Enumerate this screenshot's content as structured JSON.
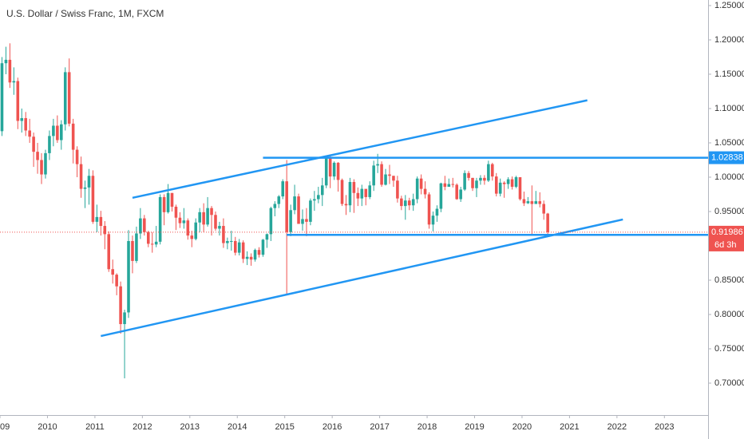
{
  "chart_data": {
    "type": "candlestick",
    "title": "U.S. Dollar / Swiss Franc, 1M, FXCM",
    "x": [
      "2009-01",
      "2009-02",
      "2009-03",
      "2009-04",
      "2009-05",
      "2009-06",
      "2009-07",
      "2009-08",
      "2009-09",
      "2009-10",
      "2009-11",
      "2009-12",
      "2010-01",
      "2010-02",
      "2010-03",
      "2010-04",
      "2010-05",
      "2010-06",
      "2010-07",
      "2010-08",
      "2010-09",
      "2010-10",
      "2010-11",
      "2010-12",
      "2011-01",
      "2011-02",
      "2011-03",
      "2011-04",
      "2011-05",
      "2011-06",
      "2011-07",
      "2011-08",
      "2011-09",
      "2011-10",
      "2011-11",
      "2011-12",
      "2012-01",
      "2012-02",
      "2012-03",
      "2012-04",
      "2012-05",
      "2012-06",
      "2012-07",
      "2012-08",
      "2012-09",
      "2012-10",
      "2012-11",
      "2012-12",
      "2013-01",
      "2013-02",
      "2013-03",
      "2013-04",
      "2013-05",
      "2013-06",
      "2013-07",
      "2013-08",
      "2013-09",
      "2013-10",
      "2013-11",
      "2013-12",
      "2014-01",
      "2014-02",
      "2014-03",
      "2014-04",
      "2014-05",
      "2014-06",
      "2014-07",
      "2014-08",
      "2014-09",
      "2014-10",
      "2014-11",
      "2014-12",
      "2015-01",
      "2015-02",
      "2015-03",
      "2015-04",
      "2015-05",
      "2015-06",
      "2015-07",
      "2015-08",
      "2015-09",
      "2015-10",
      "2015-11",
      "2015-12",
      "2016-01",
      "2016-02",
      "2016-03",
      "2016-04",
      "2016-05",
      "2016-06",
      "2016-07",
      "2016-08",
      "2016-09",
      "2016-10",
      "2016-11",
      "2016-12",
      "2017-01",
      "2017-02",
      "2017-03",
      "2017-04",
      "2017-05",
      "2017-06",
      "2017-07",
      "2017-08",
      "2017-09",
      "2017-10",
      "2017-11",
      "2017-12",
      "2018-01",
      "2018-02",
      "2018-03",
      "2018-04",
      "2018-05",
      "2018-06",
      "2018-07",
      "2018-08",
      "2018-09",
      "2018-10",
      "2018-11",
      "2018-12",
      "2019-01",
      "2019-02",
      "2019-03",
      "2019-04",
      "2019-05",
      "2019-06",
      "2019-07",
      "2019-08",
      "2019-09",
      "2019-10",
      "2019-11",
      "2019-12",
      "2020-01",
      "2020-02",
      "2020-03",
      "2020-04",
      "2020-05",
      "2020-06",
      "2020-07"
    ],
    "open": [
      1.067,
      1.166,
      1.171,
      1.138,
      1.14,
      1.082,
      1.086,
      1.068,
      1.059,
      1.037,
      1.025,
      1.004,
      1.035,
      1.06,
      1.075,
      1.054,
      1.077,
      1.153,
      1.078,
      1.04,
      1.019,
      0.983,
      0.985,
      1.002,
      0.935,
      0.942,
      0.929,
      0.917,
      0.866,
      0.858,
      0.841,
      0.786,
      0.803,
      0.907,
      0.878,
      0.918,
      0.94,
      0.92,
      0.903,
      0.902,
      0.906,
      0.971,
      0.949,
      0.977,
      0.957,
      0.941,
      0.933,
      0.937,
      0.915,
      0.91,
      0.934,
      0.949,
      0.931,
      0.955,
      0.945,
      0.925,
      0.929,
      0.904,
      0.907,
      0.907,
      0.89,
      0.905,
      0.881,
      0.884,
      0.88,
      0.894,
      0.887,
      0.909,
      0.917,
      0.955,
      0.961,
      0.972,
      0.994,
      0.92,
      0.952,
      0.972,
      0.932,
      0.939,
      0.935,
      0.966,
      0.968,
      0.974,
      0.988,
      1.028,
      1.001,
      1.021,
      0.996,
      0.961,
      0.959,
      0.993,
      0.977,
      0.969,
      0.983,
      0.971,
      0.988,
      1.017,
      1.019,
      0.989,
      1.004,
      1.002,
      0.995,
      0.969,
      0.958,
      0.966,
      0.959,
      0.968,
      0.998,
      0.983,
      0.975,
      0.931,
      0.944,
      0.954,
      0.991,
      0.986,
      0.99,
      0.989,
      0.968,
      0.982,
      1.006,
      0.999,
      0.984,
      0.995,
      0.999,
      0.995,
      1.019,
      1.001,
      0.976,
      0.992,
      0.99,
      0.997,
      0.986,
      1.0,
      0.968,
      0.962,
      0.965,
      0.961,
      0.965,
      0.961,
      0.947
    ],
    "high": [
      1.175,
      1.19,
      1.195,
      1.16,
      1.145,
      1.1,
      1.095,
      1.085,
      1.065,
      1.05,
      1.035,
      1.04,
      1.068,
      1.085,
      1.09,
      1.083,
      1.16,
      1.173,
      1.085,
      1.045,
      1.03,
      0.995,
      1.012,
      1.01,
      0.96,
      0.951,
      0.936,
      0.921,
      0.88,
      0.86,
      0.848,
      0.807,
      0.923,
      0.915,
      0.928,
      0.955,
      0.945,
      0.922,
      0.92,
      0.929,
      0.975,
      0.975,
      0.99,
      0.977,
      0.96,
      0.949,
      0.955,
      0.94,
      0.922,
      0.94,
      0.955,
      0.962,
      0.971,
      0.958,
      0.95,
      0.935,
      0.94,
      0.912,
      0.922,
      0.913,
      0.91,
      0.908,
      0.892,
      0.889,
      0.896,
      0.898,
      0.91,
      0.918,
      0.957,
      0.965,
      0.974,
      0.997,
      1.025,
      0.96,
      0.989,
      0.976,
      0.953,
      0.955,
      0.969,
      0.98,
      0.986,
      0.999,
      1.03,
      1.032,
      1.023,
      1.022,
      0.998,
      0.974,
      0.999,
      0.997,
      0.985,
      0.989,
      0.982,
      0.994,
      1.024,
      1.034,
      1.023,
      1.012,
      1.018,
      1.002,
      1.002,
      0.973,
      0.974,
      0.97,
      0.976,
      1.001,
      1.004,
      0.994,
      0.978,
      0.95,
      0.959,
      0.992,
      1.002,
      0.998,
      0.999,
      0.991,
      0.986,
      1.01,
      1.009,
      0.999,
      0.999,
      1.003,
      1.003,
      1.024,
      1.021,
      1.006,
      0.998,
      0.994,
      1.0,
      1.001,
      1.002,
      0.999,
      0.979,
      0.971,
      0.988,
      0.98,
      0.978,
      0.966,
      0.948
    ],
    "low": [
      1.06,
      1.15,
      1.13,
      1.12,
      1.07,
      1.065,
      1.06,
      1.05,
      1.015,
      1.005,
      0.99,
      0.998,
      1.025,
      1.045,
      1.05,
      1.04,
      1.068,
      1.074,
      1.02,
      1.0,
      0.97,
      0.955,
      0.96,
      0.932,
      0.92,
      0.915,
      0.895,
      0.862,
      0.845,
      0.828,
      0.772,
      0.707,
      0.795,
      0.86,
      0.875,
      0.91,
      0.915,
      0.898,
      0.89,
      0.898,
      0.902,
      0.93,
      0.947,
      0.95,
      0.923,
      0.926,
      0.925,
      0.909,
      0.898,
      0.908,
      0.92,
      0.92,
      0.928,
      0.915,
      0.922,
      0.915,
      0.897,
      0.895,
      0.893,
      0.886,
      0.886,
      0.875,
      0.872,
      0.871,
      0.877,
      0.883,
      0.884,
      0.897,
      0.907,
      0.943,
      0.955,
      0.968,
      0.83,
      0.914,
      0.946,
      0.933,
      0.922,
      0.914,
      0.93,
      0.951,
      0.962,
      0.958,
      0.984,
      0.984,
      0.996,
      0.979,
      0.958,
      0.945,
      0.949,
      0.948,
      0.958,
      0.958,
      0.959,
      0.968,
      0.98,
      1.006,
      0.986,
      0.988,
      0.99,
      0.986,
      0.963,
      0.952,
      0.938,
      0.952,
      0.951,
      0.962,
      0.975,
      0.969,
      0.925,
      0.921,
      0.935,
      0.949,
      0.981,
      0.986,
      0.985,
      0.967,
      0.964,
      0.98,
      0.995,
      0.98,
      0.971,
      0.989,
      0.989,
      0.993,
      0.995,
      0.972,
      0.972,
      0.97,
      0.983,
      0.982,
      0.984,
      0.966,
      0.958,
      0.961,
      0.915,
      0.961,
      0.956,
      0.938,
      0.917
    ],
    "close": [
      1.166,
      1.171,
      1.138,
      1.14,
      1.082,
      1.086,
      1.068,
      1.059,
      1.037,
      1.025,
      1.004,
      1.035,
      1.06,
      1.075,
      1.054,
      1.077,
      1.153,
      1.078,
      1.04,
      1.019,
      0.983,
      0.985,
      1.002,
      0.935,
      0.942,
      0.929,
      0.917,
      0.866,
      0.858,
      0.841,
      0.786,
      0.803,
      0.907,
      0.878,
      0.918,
      0.94,
      0.92,
      0.903,
      0.902,
      0.906,
      0.971,
      0.949,
      0.977,
      0.957,
      0.941,
      0.933,
      0.937,
      0.915,
      0.91,
      0.934,
      0.949,
      0.931,
      0.955,
      0.945,
      0.925,
      0.929,
      0.904,
      0.907,
      0.907,
      0.89,
      0.905,
      0.881,
      0.884,
      0.88,
      0.894,
      0.887,
      0.909,
      0.917,
      0.955,
      0.961,
      0.972,
      0.994,
      0.92,
      0.952,
      0.972,
      0.932,
      0.939,
      0.935,
      0.966,
      0.968,
      0.974,
      0.988,
      1.028,
      1.001,
      1.021,
      0.996,
      0.961,
      0.959,
      0.993,
      0.977,
      0.969,
      0.983,
      0.971,
      0.988,
      1.017,
      1.019,
      0.989,
      1.004,
      1.002,
      0.995,
      0.969,
      0.958,
      0.966,
      0.959,
      0.968,
      0.998,
      0.983,
      0.975,
      0.931,
      0.944,
      0.954,
      0.991,
      0.986,
      0.99,
      0.989,
      0.968,
      0.982,
      1.006,
      0.999,
      0.984,
      0.995,
      0.999,
      0.995,
      1.019,
      1.001,
      0.976,
      0.992,
      0.99,
      0.997,
      0.986,
      1.0,
      0.968,
      0.962,
      0.965,
      0.961,
      0.965,
      0.961,
      0.947,
      0.91986
    ],
    "up_color": "#26a69a",
    "down_color": "#ef5350",
    "countdown": "6d 3h",
    "levels": [
      {
        "value": 1.02838,
        "from": "2014-07",
        "color": "#2196f3"
      },
      {
        "value": 0.91598,
        "from": "2015-01",
        "color": "#2196f3"
      }
    ],
    "trendlines": [
      {
        "from": [
          "2011-10",
          0.97
        ],
        "to": [
          "2021-05",
          1.112
        ],
        "color": "#2196f3"
      },
      {
        "from": [
          "2011-02",
          0.7686
        ],
        "to": [
          "2022-02",
          0.9384
        ],
        "color": "#2196f3"
      }
    ],
    "xlim": [
      2009,
      2023.92
    ],
    "xticks": [
      2009,
      2010,
      2011,
      2012,
      2013,
      2014,
      2015,
      2016,
      2017,
      2018,
      2019,
      2020,
      2021,
      2022,
      2023
    ],
    "ylim": [
      0.6535,
      1.2581
    ],
    "yticks": [
      {
        "value": 0.7,
        "label": "0.70000"
      },
      {
        "value": 0.75,
        "label": "0.75000"
      },
      {
        "value": 0.8,
        "label": "0.80000"
      },
      {
        "value": 0.85,
        "label": "0.85000"
      },
      {
        "value": 0.9,
        "label": "0.90000"
      },
      {
        "value": 0.95,
        "label": "0.95000"
      },
      {
        "value": 1.0,
        "label": "1.00000"
      },
      {
        "value": 1.05,
        "label": "1.05000"
      },
      {
        "value": 1.1,
        "label": "1.10000"
      },
      {
        "value": 1.15,
        "label": "1.15000"
      },
      {
        "value": 1.2,
        "label": "1.20000"
      },
      {
        "value": 1.25,
        "label": "1.25000"
      }
    ]
  }
}
